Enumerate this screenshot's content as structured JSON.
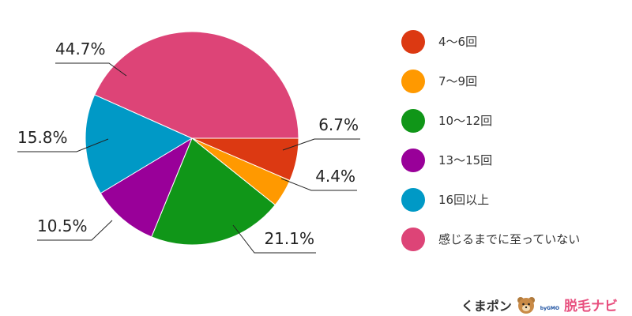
{
  "chart_data": {
    "type": "pie",
    "title": "",
    "start_angle_deg": 90,
    "direction": "clockwise",
    "slices": [
      {
        "name": "4〜6回",
        "value": 6.7,
        "label": "6.7%",
        "color": "#dc3912"
      },
      {
        "name": "7〜9回",
        "value": 4.4,
        "label": "4.4%",
        "color": "#ff9900"
      },
      {
        "name": "10〜12回",
        "value": 21.1,
        "label": "21.1%",
        "color": "#109618"
      },
      {
        "name": "13〜15回",
        "value": 10.5,
        "label": "10.5%",
        "color": "#990099"
      },
      {
        "name": "16回以上",
        "value": 15.8,
        "label": "15.8%",
        "color": "#0099c6"
      },
      {
        "name": "感じるまでに至っていない",
        "value": 44.7,
        "label": "44.7%",
        "color": "#dd4477"
      }
    ],
    "legend": "right"
  },
  "branding": {
    "kumapon": "くまポン",
    "gmo": "byGMO",
    "site": "脱毛ナビ",
    "mascot_icon": "bear-mascot-icon"
  }
}
